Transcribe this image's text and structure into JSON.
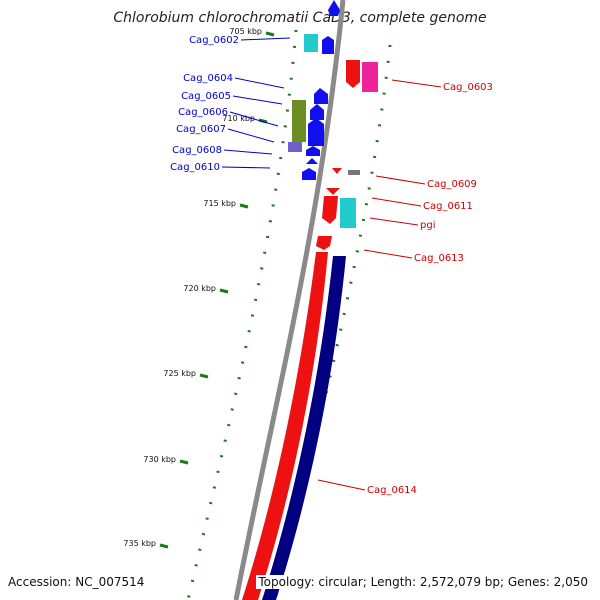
{
  "title": "Chlorobium chlorochromatii CaD3, complete genome",
  "accession_text": "Accession: NC_007514",
  "summary_text": "Topology: circular; Length: 2,572,079 bp; Genes: 2,050",
  "colors": {
    "backbone": "#8a8a8a",
    "tick": "#1a7a1a",
    "forward_label": "#0000cc",
    "reverse_label": "#cc0000",
    "blue_gene": "#1010ee",
    "red_gene": "#ee1111",
    "cyan_gene": "#22cccc",
    "magenta_gene": "#ee2299",
    "olive_gene": "#6b8e23",
    "navy_gene": "#000080",
    "grey_gene": "#777777"
  },
  "ticks": [
    {
      "label": "705 kbp"
    },
    {
      "label": "710 kbp"
    },
    {
      "label": "715 kbp"
    },
    {
      "label": "720 kbp"
    },
    {
      "label": "725 kbp"
    },
    {
      "label": "730 kbp"
    },
    {
      "label": "735 kbp"
    }
  ],
  "forward_genes": [
    {
      "name": "Cag_0602"
    },
    {
      "name": "Cag_0604"
    },
    {
      "name": "Cag_0605"
    },
    {
      "name": "Cag_0606"
    },
    {
      "name": "Cag_0607"
    },
    {
      "name": "Cag_0608"
    },
    {
      "name": "Cag_0610"
    }
  ],
  "reverse_genes": [
    {
      "name": "Cag_0603"
    },
    {
      "name": "Cag_0609"
    },
    {
      "name": "Cag_0611"
    },
    {
      "name": "pgi"
    },
    {
      "name": "Cag_0613"
    },
    {
      "name": "Cag_0614"
    }
  ]
}
